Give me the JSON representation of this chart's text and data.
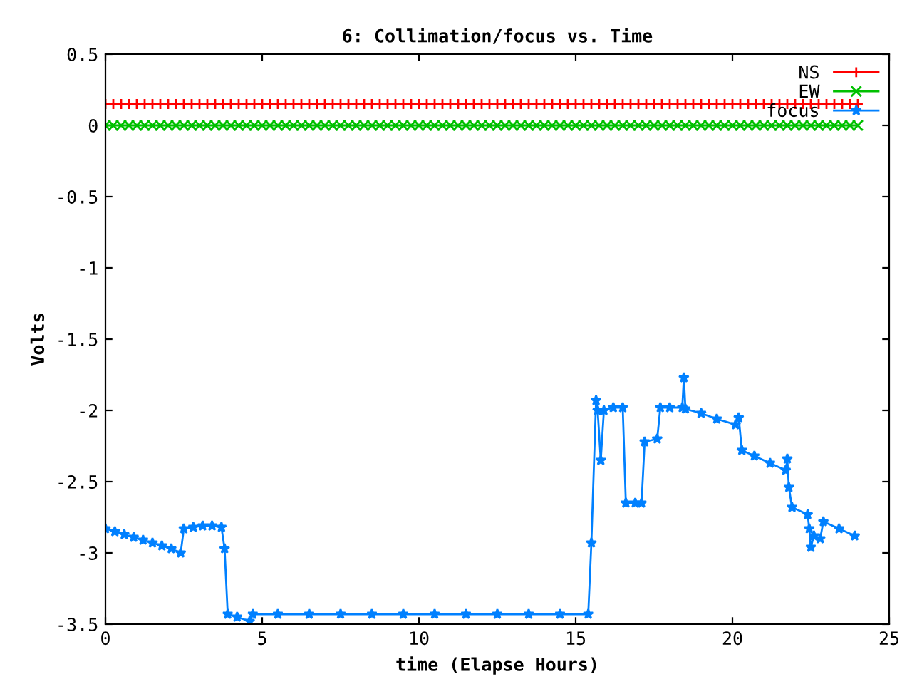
{
  "chart_data": {
    "type": "line",
    "title": "6: Collimation/focus vs. Time",
    "xlabel": "time (Elapse Hours)",
    "ylabel": "Volts",
    "xlim": [
      0,
      25
    ],
    "ylim": [
      -3.5,
      0.5
    ],
    "xticks": [
      0,
      5,
      10,
      15,
      20,
      25
    ],
    "yticks": [
      0.5,
      0,
      -0.5,
      -1,
      -1.5,
      -2,
      -2.5,
      -3,
      -3.5
    ],
    "grid": false,
    "legend": "top right",
    "series": [
      {
        "name": "NS",
        "color": "#ff0000",
        "marker": "plus",
        "x": [
          0,
          0.25,
          0.5,
          0.75,
          1,
          1.25,
          1.5,
          1.75,
          2,
          2.25,
          2.5,
          2.75,
          3,
          3.25,
          3.5,
          3.75,
          4,
          4.25,
          4.5,
          4.75,
          5,
          5.25,
          5.5,
          5.75,
          6,
          6.25,
          6.5,
          6.75,
          7,
          7.25,
          7.5,
          7.75,
          8,
          8.25,
          8.5,
          8.75,
          9,
          9.25,
          9.5,
          9.75,
          10,
          10.25,
          10.5,
          10.75,
          11,
          11.25,
          11.5,
          11.75,
          12,
          12.25,
          12.5,
          12.75,
          13,
          13.25,
          13.5,
          13.75,
          14,
          14.25,
          14.5,
          14.75,
          15,
          15.25,
          15.5,
          15.75,
          16,
          16.25,
          16.5,
          16.75,
          17,
          17.25,
          17.5,
          17.75,
          18,
          18.25,
          18.5,
          18.75,
          19,
          19.25,
          19.5,
          19.75,
          20,
          20.25,
          20.5,
          20.75,
          21,
          21.25,
          21.5,
          21.75,
          22,
          22.25,
          22.5,
          22.75,
          23,
          23.25,
          23.5,
          23.75,
          24
        ],
        "values": [
          0.15,
          0.15,
          0.15,
          0.15,
          0.15,
          0.15,
          0.15,
          0.15,
          0.15,
          0.15,
          0.15,
          0.15,
          0.15,
          0.15,
          0.15,
          0.15,
          0.15,
          0.15,
          0.15,
          0.15,
          0.15,
          0.15,
          0.15,
          0.15,
          0.15,
          0.15,
          0.15,
          0.15,
          0.15,
          0.15,
          0.15,
          0.15,
          0.15,
          0.15,
          0.15,
          0.15,
          0.15,
          0.15,
          0.15,
          0.15,
          0.15,
          0.15,
          0.15,
          0.15,
          0.15,
          0.15,
          0.15,
          0.15,
          0.15,
          0.15,
          0.15,
          0.15,
          0.15,
          0.15,
          0.15,
          0.15,
          0.15,
          0.15,
          0.15,
          0.15,
          0.15,
          0.15,
          0.15,
          0.15,
          0.15,
          0.15,
          0.15,
          0.15,
          0.15,
          0.15,
          0.15,
          0.15,
          0.15,
          0.15,
          0.15,
          0.15,
          0.15,
          0.15,
          0.15,
          0.15,
          0.15,
          0.15,
          0.15,
          0.15,
          0.15,
          0.15,
          0.15,
          0.15,
          0.15,
          0.15,
          0.15,
          0.15,
          0.15,
          0.15,
          0.15,
          0.15,
          0.15
        ]
      },
      {
        "name": "EW",
        "color": "#00c000",
        "marker": "cross",
        "x": [
          0,
          0.25,
          0.5,
          0.75,
          1,
          1.25,
          1.5,
          1.75,
          2,
          2.25,
          2.5,
          2.75,
          3,
          3.25,
          3.5,
          3.75,
          4,
          4.25,
          4.5,
          4.75,
          5,
          5.25,
          5.5,
          5.75,
          6,
          6.25,
          6.5,
          6.75,
          7,
          7.25,
          7.5,
          7.75,
          8,
          8.25,
          8.5,
          8.75,
          9,
          9.25,
          9.5,
          9.75,
          10,
          10.25,
          10.5,
          10.75,
          11,
          11.25,
          11.5,
          11.75,
          12,
          12.25,
          12.5,
          12.75,
          13,
          13.25,
          13.5,
          13.75,
          14,
          14.25,
          14.5,
          14.75,
          15,
          15.25,
          15.5,
          15.75,
          16,
          16.25,
          16.5,
          16.75,
          17,
          17.25,
          17.5,
          17.75,
          18,
          18.25,
          18.5,
          18.75,
          19,
          19.25,
          19.5,
          19.75,
          20,
          20.25,
          20.5,
          20.75,
          21,
          21.25,
          21.5,
          21.75,
          22,
          22.25,
          22.5,
          22.75,
          23,
          23.25,
          23.5,
          23.75,
          24
        ],
        "values": [
          0,
          0,
          0,
          0,
          0,
          0,
          0,
          0,
          0,
          0,
          0,
          0,
          0,
          0,
          0,
          0,
          0,
          0,
          0,
          0,
          0,
          0,
          0,
          0,
          0,
          0,
          0,
          0,
          0,
          0,
          0,
          0,
          0,
          0,
          0,
          0,
          0,
          0,
          0,
          0,
          0,
          0,
          0,
          0,
          0,
          0,
          0,
          0,
          0,
          0,
          0,
          0,
          0,
          0,
          0,
          0,
          0,
          0,
          0,
          0,
          0,
          0,
          0,
          0,
          0,
          0,
          0,
          0,
          0,
          0,
          0,
          0,
          0,
          0,
          0,
          0,
          0,
          0,
          0,
          0,
          0,
          0,
          0,
          0,
          0,
          0,
          0,
          0,
          0,
          0,
          0,
          0,
          0,
          0,
          0,
          0,
          0
        ]
      },
      {
        "name": "focus",
        "color": "#0080ff",
        "marker": "star",
        "x": [
          0,
          0.3,
          0.6,
          0.9,
          1.2,
          1.5,
          1.8,
          2.1,
          2.4,
          2.5,
          2.8,
          3.1,
          3.4,
          3.7,
          3.8,
          3.9,
          4.2,
          4.6,
          4.7,
          5.5,
          6.5,
          7.5,
          8.5,
          9.5,
          10.5,
          11.5,
          12.5,
          13.5,
          14.5,
          15.4,
          15.5,
          15.65,
          15.7,
          15.8,
          15.9,
          16.2,
          16.5,
          16.6,
          16.9,
          17.1,
          17.2,
          17.6,
          17.7,
          18.0,
          18.4,
          18.45,
          18.5,
          19.0,
          19.5,
          20.1,
          20.2,
          20.3,
          20.7,
          21.2,
          21.7,
          21.75,
          21.8,
          21.9,
          22.4,
          22.45,
          22.5,
          22.6,
          22.8,
          22.9,
          23.4,
          23.9
        ],
        "values": [
          -2.83,
          -2.85,
          -2.87,
          -2.89,
          -2.91,
          -2.93,
          -2.95,
          -2.97,
          -3.0,
          -2.83,
          -2.82,
          -2.81,
          -2.81,
          -2.82,
          -2.97,
          -3.43,
          -3.45,
          -3.48,
          -3.43,
          -3.43,
          -3.43,
          -3.43,
          -3.43,
          -3.43,
          -3.43,
          -3.43,
          -3.43,
          -3.43,
          -3.43,
          -3.43,
          -2.93,
          -1.93,
          -2.0,
          -2.35,
          -2.0,
          -1.98,
          -1.98,
          -2.65,
          -2.65,
          -2.65,
          -2.22,
          -2.2,
          -1.98,
          -1.98,
          -1.98,
          -1.77,
          -1.99,
          -2.02,
          -2.06,
          -2.1,
          -2.05,
          -2.28,
          -2.32,
          -2.37,
          -2.42,
          -2.34,
          -2.54,
          -2.68,
          -2.73,
          -2.83,
          -2.96,
          -2.88,
          -2.9,
          -2.78,
          -2.83,
          -2.88
        ]
      }
    ]
  }
}
